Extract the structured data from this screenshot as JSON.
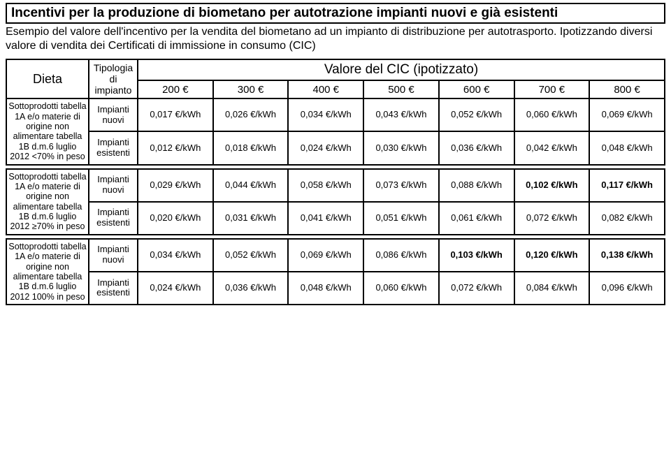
{
  "title": "Incentivi per la produzione di biometano per autotrazione  impianti nuovi e già esistenti",
  "subtitle": "Esempio del valore dell'incentivo per la vendita del biometano ad un impianto di distribuzione per autotrasporto. Ipotizzando diversi valore di vendita dei Certificati di immissione in consumo (CIC)",
  "headers": {
    "dieta": "Dieta",
    "tipo": "Tipologia di impianto",
    "cic": "Valore del CIC (ipotizzato)",
    "cols": [
      "200 €",
      "300 €",
      "400 €",
      "500 €",
      "600 €",
      "700 €",
      "800 €"
    ]
  },
  "tipo_labels": {
    "nuovi": "Impianti nuovi",
    "esistenti": "Impianti esistenti"
  },
  "groups": [
    {
      "dieta": "Sottoprodotti tabella 1A  e/o materie di origine non alimentare tabella 1B d.m.6 luglio 2012 <70% in peso",
      "rows": [
        {
          "tipo": "nuovi",
          "vals": [
            "0,017 €/kWh",
            "0,026 €/kWh",
            "0,034 €/kWh",
            "0,043 €/kWh",
            "0,052 €/kWh",
            "0,060 €/kWh",
            "0,069 €/kWh"
          ],
          "bold": []
        },
        {
          "tipo": "esistenti",
          "vals": [
            "0,012 €/kWh",
            "0,018 €/kWh",
            "0,024 €/kWh",
            "0,030 €/kWh",
            "0,036 €/kWh",
            "0,042 €/kWh",
            "0,048 €/kWh"
          ],
          "bold": []
        }
      ]
    },
    {
      "dieta": "Sottoprodotti tabella 1A  e/o materie di origine non alimentare tabella 1B d.m.6 luglio 2012 ≥70% in peso",
      "rows": [
        {
          "tipo": "nuovi",
          "vals": [
            "0,029 €/kWh",
            "0,044 €/kWh",
            "0,058 €/kWh",
            "0,073 €/kWh",
            "0,088 €/kWh",
            "0,102 €/kWh",
            "0,117 €/kWh"
          ],
          "bold": [
            5,
            6
          ]
        },
        {
          "tipo": "esistenti",
          "vals": [
            "0,020 €/kWh",
            "0,031 €/kWh",
            "0,041 €/kWh",
            "0,051 €/kWh",
            "0,061 €/kWh",
            "0,072 €/kWh",
            "0,082 €/kWh"
          ],
          "bold": []
        }
      ]
    },
    {
      "dieta": "Sottoprodotti tabella 1A e/o materie di origine non alimentare tabella 1B d.m.6 luglio 2012 100%  in peso",
      "rows": [
        {
          "tipo": "nuovi",
          "vals": [
            "0,034 €/kWh",
            "0,052 €/kWh",
            "0,069 €/kWh",
            "0,086 €/kWh",
            "0,103 €/kWh",
            "0,120 €/kWh",
            "0,138 €/kWh"
          ],
          "bold": [
            4,
            5,
            6
          ]
        },
        {
          "tipo": "esistenti",
          "vals": [
            "0,024 €/kWh",
            "0,036 €/kWh",
            "0,048 €/kWh",
            "0,060 €/kWh",
            "0,072 €/kWh",
            "0,084 €/kWh",
            "0,096 €/kWh"
          ],
          "bold": []
        }
      ]
    }
  ]
}
